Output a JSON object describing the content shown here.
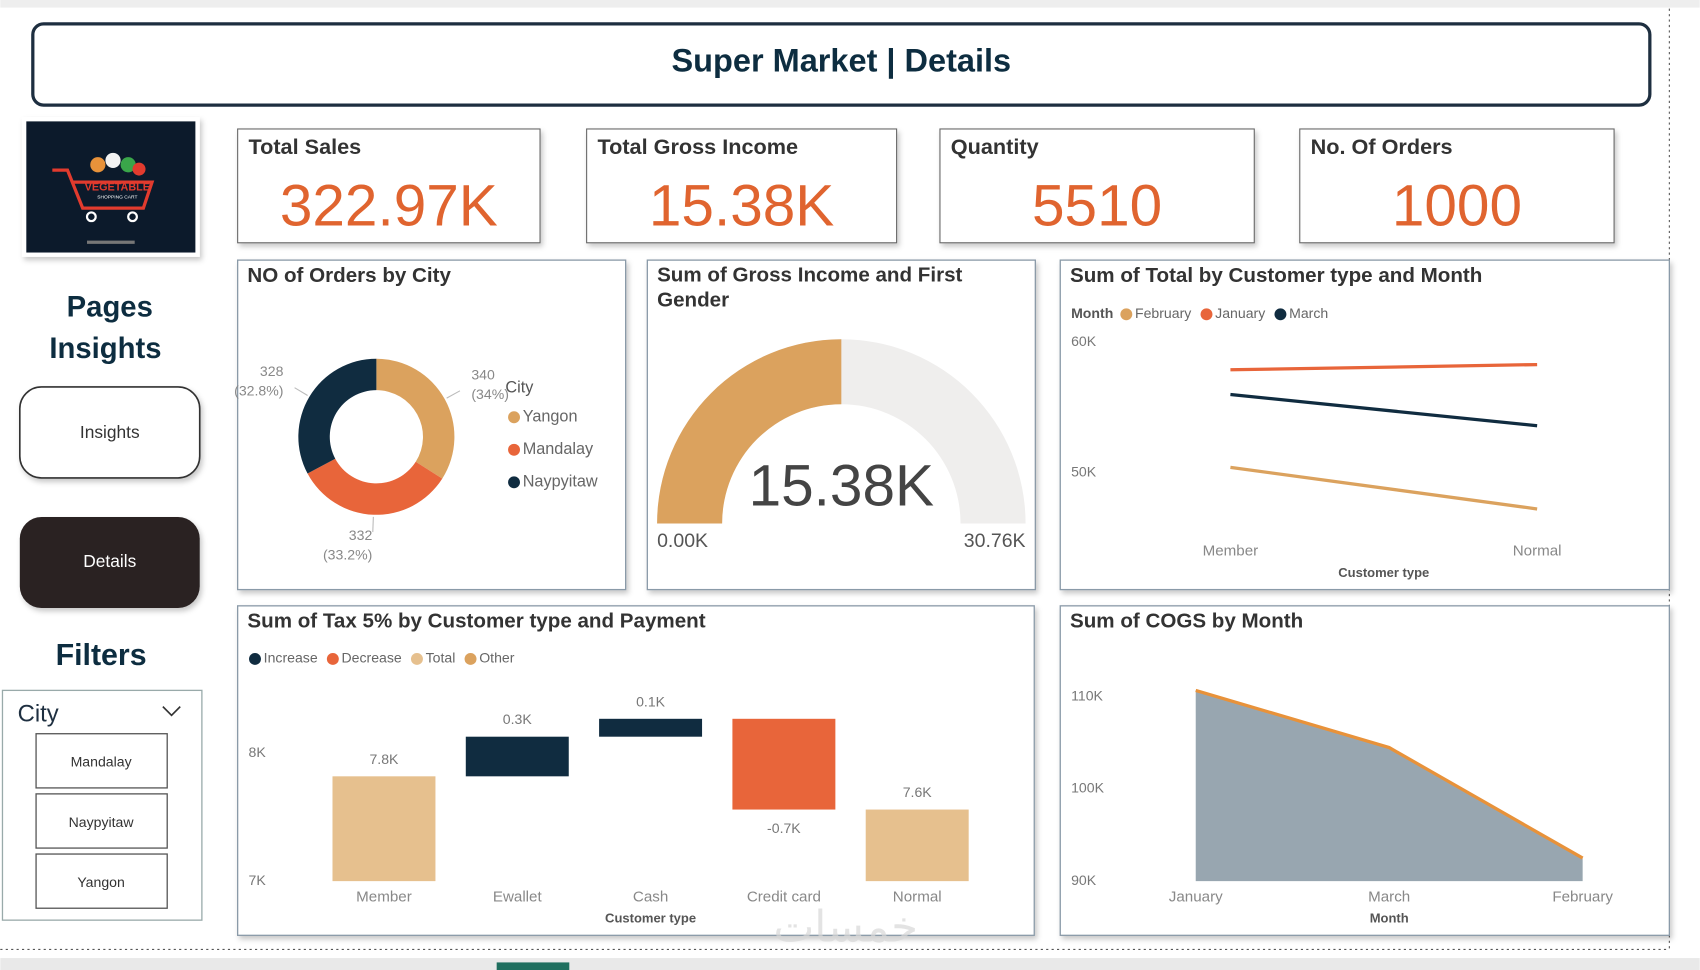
{
  "header": {
    "title": "Super Market | Details"
  },
  "logo": {
    "lines": [
      "VEGETABLE",
      "SHOPPING CART"
    ]
  },
  "sidebar": {
    "heading": [
      "Pages",
      "Insights"
    ],
    "buttons": [
      "Insights",
      "Details"
    ],
    "filters_title": "Filters",
    "filter": {
      "label": "City",
      "options": [
        "Mandalay",
        "Naypyitaw",
        "Yangon"
      ]
    }
  },
  "kpis": [
    {
      "label": "Total Sales",
      "value": "322.97K"
    },
    {
      "label": "Total Gross Income",
      "value": "15.38K"
    },
    {
      "label": "Quantity",
      "value": "5510"
    },
    {
      "label": "No. Of Orders",
      "value": "1000"
    }
  ],
  "watermark": "خمسات",
  "chart_data": [
    {
      "type": "pie",
      "title": "NO of Orders by City",
      "legend_title": "City",
      "categories": [
        "Yangon",
        "Mandalay",
        "Naypyitaw"
      ],
      "values": [
        340,
        332,
        328
      ],
      "percent_labels": [
        "(34%)",
        "(33.2%)",
        "(32.8%)"
      ],
      "colors": [
        "#dba25e",
        "#e8653a",
        "#102c40"
      ],
      "donut": true
    },
    {
      "type": "gauge",
      "title": "Sum of Gross Income and First Gender",
      "values": [
        15380
      ],
      "value_labels": [
        "15.38K"
      ],
      "ylim": [
        0,
        30760
      ],
      "yticks": [
        {
          "value": 0,
          "label": "0.00K"
        },
        {
          "value": 30760,
          "label": "30.76K"
        }
      ],
      "color": "#dba25e",
      "track_color": "#efeeed"
    },
    {
      "type": "line",
      "title": "Sum of Total by Customer type and Month",
      "legend_title": "Month",
      "categories": [
        "Member",
        "Normal"
      ],
      "x_label": "Customer type",
      "series": [
        {
          "name": "February",
          "color": "#dba25e",
          "values": [
            50400,
            47200
          ]
        },
        {
          "name": "January",
          "color": "#e8653a",
          "values": [
            57900,
            58300
          ]
        },
        {
          "name": "March",
          "color": "#102c40",
          "values": [
            56000,
            53600
          ]
        }
      ],
      "ylim": [
        45000,
        60000
      ],
      "yticks": [
        {
          "value": 50000,
          "label": "50K"
        },
        {
          "value": 60000,
          "label": "60K"
        }
      ]
    },
    {
      "type": "waterfall",
      "title": "Sum of Tax 5% by Customer type and Payment",
      "legend": [
        {
          "name": "Increase",
          "color": "#102c40"
        },
        {
          "name": "Decrease",
          "color": "#e8653a"
        },
        {
          "name": "Total",
          "color": "#e6c08e"
        },
        {
          "name": "Other",
          "color": "#dba25e"
        }
      ],
      "categories": [
        "Member",
        "Ewallet",
        "Cash",
        "Credit card",
        "Normal"
      ],
      "x_label": "Customer type",
      "values": [
        7820,
        310,
        140,
        -710,
        7560
      ],
      "value_labels": [
        "7.8K",
        "0.3K",
        "0.1K",
        "-0.7K",
        "7.6K"
      ],
      "kinds": [
        "Total",
        "Increase",
        "Increase",
        "Decrease",
        "Total"
      ],
      "ylim": [
        7000,
        8450
      ],
      "yticks": [
        {
          "value": 7000,
          "label": "7K"
        },
        {
          "value": 8000,
          "label": "8K"
        }
      ]
    },
    {
      "type": "area",
      "title": "Sum of COGS by Month",
      "categories": [
        "January",
        "March",
        "February"
      ],
      "x_label": "Month",
      "values": [
        110700,
        104500,
        92500
      ],
      "color": "#98a6b0",
      "line_color": "#e8923a",
      "ylim": [
        90000,
        112000
      ],
      "yticks": [
        {
          "value": 90000,
          "label": "90K"
        },
        {
          "value": 100000,
          "label": "100K"
        },
        {
          "value": 110000,
          "label": "110K"
        }
      ]
    }
  ]
}
